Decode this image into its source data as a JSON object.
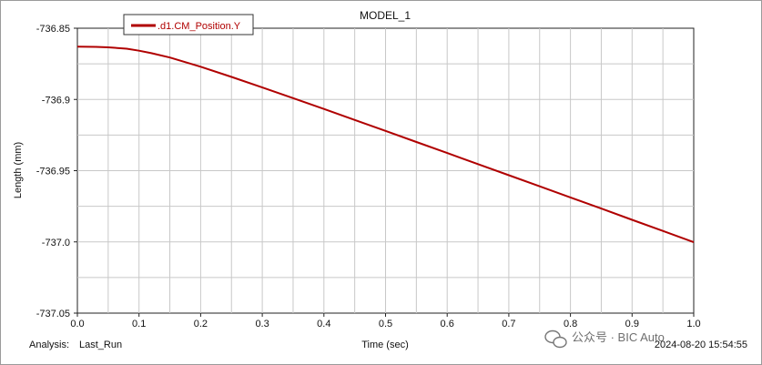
{
  "chart_data": {
    "type": "line",
    "title": "MODEL_1",
    "xlabel": "Time (sec)",
    "ylabel": "Length (mm)",
    "xlim": [
      0.0,
      1.0
    ],
    "ylim": [
      -737.05,
      -736.85
    ],
    "x_ticks": [
      "0.0",
      "0.1",
      "0.2",
      "0.3",
      "0.4",
      "0.5",
      "0.6",
      "0.7",
      "0.8",
      "0.9",
      "1.0"
    ],
    "y_ticks": [
      "-736.85",
      "-736.9",
      "-736.95",
      "-737.0",
      "-737.05"
    ],
    "grid": true,
    "legend_position": "top-left",
    "series": [
      {
        "name": ".d1.CM_Position.Y",
        "color": "#b00000",
        "x": [
          0.0,
          0.03,
          0.05,
          0.08,
          0.1,
          0.12,
          0.15,
          0.2,
          0.25,
          0.3,
          0.35,
          0.4,
          0.45,
          0.5,
          0.55,
          0.6,
          0.65,
          0.7,
          0.75,
          0.8,
          0.85,
          0.9,
          0.95,
          1.0
        ],
        "y": [
          -736.863,
          -736.8631,
          -736.8634,
          -736.8644,
          -736.8658,
          -736.8675,
          -736.8706,
          -736.877,
          -736.8842,
          -736.8916,
          -736.8991,
          -736.9067,
          -736.9144,
          -736.9221,
          -736.9299,
          -736.9376,
          -736.9454,
          -736.9532,
          -736.961,
          -736.9688,
          -736.9766,
          -736.9845,
          -736.9923,
          -737.0002
        ]
      }
    ]
  },
  "footer": {
    "analysis_label": "Analysis:",
    "analysis_value": "Last_Run",
    "timestamp": "2024-08-20 15:54:55",
    "watermark": "公众号 · BIC Auto"
  }
}
